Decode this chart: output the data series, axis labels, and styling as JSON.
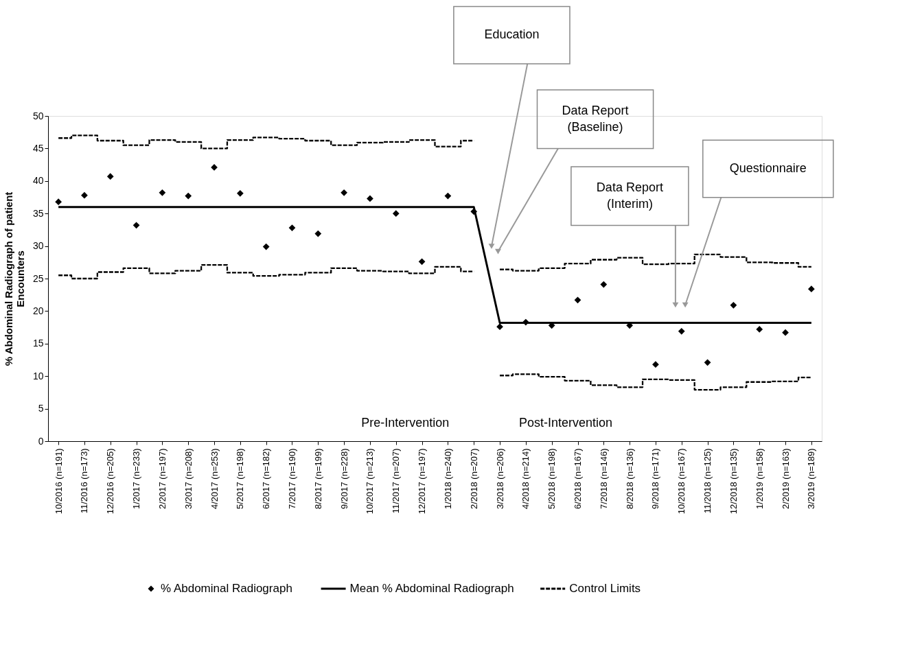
{
  "chart_data": {
    "type": "scatter",
    "xlabel": null,
    "ylabel": "% Abdominal Radiograph of patient Encounters",
    "categories": [
      "10/2016 (n=191)",
      "11/2016 (n=173)",
      "12/2016 (n=205)",
      "1/2017 (n=233)",
      "2/2017 (n=197)",
      "3/2017 (n=208)",
      "4/2017 (n=253)",
      "5/2017 (n=198)",
      "6/2017 (n=182)",
      "7/2017 (n=190)",
      "8/2017 (n=199)",
      "9/2017 (n=228)",
      "10/2017 (n=213)",
      "11/2017 (n=207)",
      "12/2017 (n=197)",
      "1/2018 (n=240)",
      "2/2018 (n=207)",
      "3/2018 (n=206)",
      "4/2018 (n=214)",
      "5/2018 (n=198)",
      "6/2018 (n=167)",
      "7/2018 (n=146)",
      "8/2018 (n=136)",
      "9/2018 (n=171)",
      "10/2018 (n=167)",
      "11/2018 (n=125)",
      "12/2018 (n=135)",
      "1/2019 (n=158)",
      "2/2019 (n=163)",
      "3/2019 (n=189)"
    ],
    "ylim": [
      0,
      50
    ],
    "yticks": [
      0,
      5,
      10,
      15,
      20,
      25,
      30,
      35,
      40,
      45,
      50
    ],
    "grid": false,
    "legend": "bottom",
    "series": [
      {
        "name": "% Abdominal Radiograph",
        "type": "scatter",
        "marker": "diamond",
        "color": "#000000",
        "values": [
          36.8,
          37.8,
          40.7,
          33.2,
          38.2,
          37.7,
          42.1,
          38.1,
          29.9,
          32.8,
          31.9,
          38.2,
          37.3,
          35.0,
          27.6,
          37.7,
          35.3,
          17.6,
          18.3,
          17.8,
          21.7,
          24.1,
          17.8,
          11.8,
          16.9,
          12.1,
          20.9,
          17.2,
          16.7,
          23.4
        ]
      },
      {
        "name": "Mean % Abdominal Radiograph",
        "type": "line",
        "line_style": "solid",
        "color": "#000000",
        "values": [
          36.0,
          36.0,
          36.0,
          36.0,
          36.0,
          36.0,
          36.0,
          36.0,
          36.0,
          36.0,
          36.0,
          36.0,
          36.0,
          36.0,
          36.0,
          36.0,
          36.0,
          18.2,
          18.2,
          18.2,
          18.2,
          18.2,
          18.2,
          18.2,
          18.2,
          18.2,
          18.2,
          18.2,
          18.2,
          18.2
        ]
      },
      {
        "name": "Control Limits",
        "type": "step",
        "line_style": "dashed",
        "color": "#000000",
        "values": [
          46.6,
          47.0,
          46.2,
          45.5,
          46.3,
          46.0,
          45.0,
          46.3,
          46.7,
          46.5,
          46.2,
          45.5,
          45.9,
          46.0,
          46.3,
          45.3,
          46.2,
          null,
          null,
          null,
          null,
          null,
          null,
          null,
          null,
          null,
          null,
          null,
          null,
          null
        ]
      },
      {
        "type": "step",
        "line_style": "dashed",
        "color": "#000000",
        "values": [
          25.5,
          25.0,
          26.0,
          26.6,
          25.8,
          26.2,
          27.1,
          25.9,
          25.4,
          25.6,
          25.9,
          26.6,
          26.2,
          26.1,
          25.8,
          26.8,
          26.1,
          null,
          null,
          null,
          null,
          null,
          null,
          null,
          null,
          null,
          null,
          null,
          null,
          null
        ]
      },
      {
        "type": "step",
        "line_style": "dashed",
        "color": "#000000",
        "values": [
          null,
          null,
          null,
          null,
          null,
          null,
          null,
          null,
          null,
          null,
          null,
          null,
          null,
          null,
          null,
          null,
          null,
          26.4,
          26.2,
          26.6,
          27.3,
          27.9,
          28.2,
          27.2,
          27.3,
          28.7,
          28.3,
          27.5,
          27.4,
          26.8
        ]
      },
      {
        "type": "step",
        "line_style": "dashed",
        "color": "#000000",
        "values": [
          null,
          null,
          null,
          null,
          null,
          null,
          null,
          null,
          null,
          null,
          null,
          null,
          null,
          null,
          null,
          null,
          null,
          10.1,
          10.3,
          9.9,
          9.3,
          8.6,
          8.3,
          9.5,
          9.4,
          7.9,
          8.3,
          9.1,
          9.2,
          9.8
        ]
      }
    ],
    "annotations": [
      "Education",
      "Data Report (Baseline)",
      "Data Report (Interim)",
      "Questionnaire",
      "Pre-Intervention",
      "Post-Intervention"
    ]
  }
}
